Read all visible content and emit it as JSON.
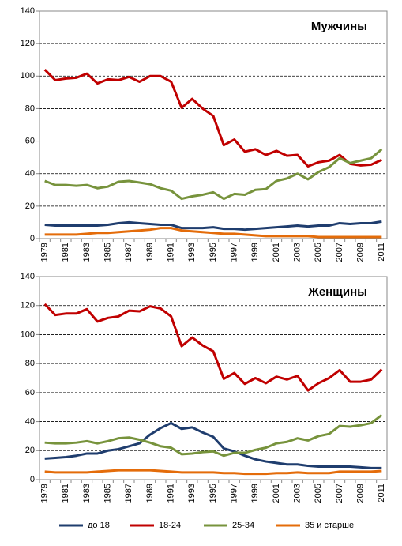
{
  "chart_data": [
    {
      "type": "line",
      "title": "Мужчины",
      "categories": [
        "1979",
        null,
        "1981",
        null,
        "1983",
        null,
        "1985",
        null,
        "1987",
        null,
        "1989",
        null,
        "1991",
        null,
        "1993",
        null,
        "1995",
        null,
        "1997",
        null,
        "1999",
        null,
        "2001",
        null,
        "2003",
        null,
        "2005",
        null,
        "2007",
        null,
        "2009",
        null,
        "2011"
      ],
      "series": [
        {
          "name": "до 18",
          "color": "#1f3d6e",
          "values": [
            8.5,
            8,
            8,
            8,
            8,
            8,
            8.5,
            9.5,
            10,
            9.5,
            9,
            8.5,
            8.5,
            6.5,
            6.5,
            6.5,
            7,
            6,
            6,
            5.5,
            6,
            6.5,
            7,
            7.5,
            8,
            7.5,
            8,
            8,
            9.5,
            9,
            9.5,
            9.5,
            10.5
          ]
        },
        {
          "name": "18-24",
          "color": "#c00000",
          "values": [
            104,
            97.5,
            98.5,
            99,
            101.5,
            95.5,
            98,
            97.5,
            99.5,
            96.5,
            100,
            100,
            96.5,
            80.5,
            86,
            80,
            75.5,
            57.5,
            61,
            53.5,
            55,
            51.5,
            54,
            51,
            51.5,
            44.5,
            47,
            48,
            51.5,
            46,
            45,
            45.5,
            48.5
          ]
        },
        {
          "name": "25-34",
          "color": "#77933c",
          "values": [
            35.5,
            33,
            33,
            32.5,
            33,
            31,
            32,
            35,
            35.5,
            34.5,
            33.5,
            31,
            29.5,
            24.5,
            26,
            27,
            28.5,
            24.5,
            27.5,
            27,
            30,
            30.5,
            35.5,
            37,
            40,
            36.5,
            41,
            44,
            49.5,
            46.5,
            48,
            49.5,
            55
          ]
        },
        {
          "name": "35 и старше",
          "color": "#e46c0a",
          "values": [
            2.5,
            2.5,
            2.5,
            2.5,
            3,
            3.5,
            3.5,
            4,
            4.5,
            5,
            5.5,
            6.5,
            6.5,
            5,
            4.5,
            4,
            3.5,
            3,
            3,
            2.5,
            2,
            1.5,
            1.5,
            1.5,
            1.5,
            1.5,
            1,
            1,
            1,
            1,
            1,
            1,
            1
          ]
        }
      ],
      "ylim": [
        0,
        140
      ],
      "yticks": [
        0,
        20,
        40,
        60,
        80,
        100,
        120,
        140
      ],
      "grid": true
    },
    {
      "type": "line",
      "title": "Женщины",
      "categories": [
        "1979",
        null,
        "1981",
        null,
        "1983",
        null,
        "1985",
        null,
        "1987",
        null,
        "1989",
        null,
        "1991",
        null,
        "1993",
        null,
        "1995",
        null,
        "1997",
        null,
        "1999",
        null,
        "2001",
        null,
        "2003",
        null,
        "2005",
        null,
        "2007",
        null,
        "2009",
        null,
        "2011"
      ],
      "series": [
        {
          "color": "#1f3d6e",
          "values": [
            14.5,
            15,
            15.5,
            16.5,
            18,
            18,
            20,
            21,
            23,
            25,
            31,
            35.5,
            39,
            35,
            36,
            32.5,
            29.5,
            21.5,
            19.5,
            16.5,
            14,
            12.5,
            11.5,
            10.5,
            10.5,
            9.5,
            9,
            9,
            9,
            9,
            8.5,
            8,
            8
          ]
        },
        {
          "color": "#c00000",
          "values": [
            121,
            113.5,
            114.5,
            114.5,
            117.5,
            109,
            111.5,
            112.5,
            116.5,
            116,
            119.5,
            118,
            112.5,
            92,
            98,
            92.5,
            88.5,
            69.5,
            73.5,
            66,
            70,
            66.5,
            71,
            69,
            71.5,
            61.5,
            66.5,
            70,
            75.5,
            67.5,
            67.5,
            69,
            76
          ]
        },
        {
          "color": "#77933c",
          "values": [
            25.5,
            25,
            25,
            25.5,
            26.5,
            25,
            26.5,
            28.5,
            29,
            27.5,
            25.5,
            23,
            22,
            17.5,
            18,
            19,
            19.5,
            16.5,
            18.5,
            18.5,
            20.5,
            22,
            25,
            26,
            28.5,
            27,
            30,
            31.5,
            37,
            36.5,
            37.5,
            39,
            44.5
          ]
        },
        {
          "color": "#e46c0a",
          "values": [
            5.5,
            5,
            5,
            5,
            5,
            5.5,
            6,
            6.5,
            6.5,
            6.5,
            6.5,
            6,
            5.5,
            5,
            5,
            5,
            5,
            4.5,
            4.5,
            4,
            4,
            4,
            4.5,
            4.5,
            5,
            4.5,
            4.5,
            4.5,
            5.5,
            5.5,
            5.5,
            5.5,
            6
          ]
        }
      ],
      "ylim": [
        0,
        140
      ],
      "yticks": [
        0,
        20,
        40,
        60,
        80,
        100,
        120,
        140
      ],
      "grid": true
    }
  ]
}
